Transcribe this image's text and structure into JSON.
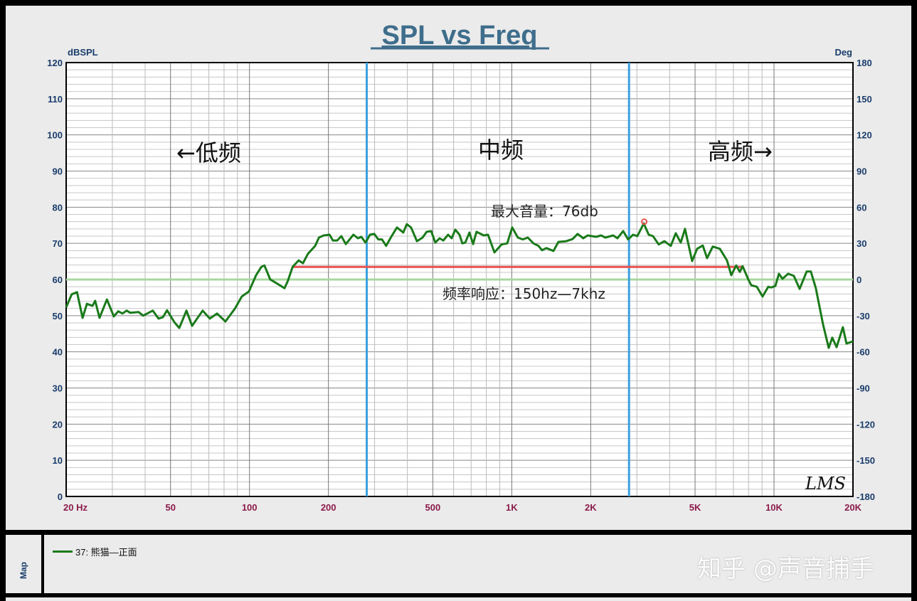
{
  "chart_data": {
    "type": "line",
    "title": "SPL vs Freq",
    "ylabel": "dBSPL",
    "ylabel_right": "Deg",
    "xscale": "log",
    "xlim": [
      20,
      20000
    ],
    "ylim": [
      0,
      120
    ],
    "ylim_right": [
      -180,
      180
    ],
    "yticks": [
      0,
      10,
      20,
      30,
      40,
      50,
      60,
      70,
      80,
      90,
      100,
      110,
      120
    ],
    "yticks_right": [
      -180,
      -150,
      -120,
      -90,
      -60,
      -30,
      0,
      30,
      60,
      90,
      120,
      150,
      180
    ],
    "xticks": [
      {
        "value": 20,
        "label": "20  Hz"
      },
      {
        "value": 50,
        "label": "50"
      },
      {
        "value": 100,
        "label": "100"
      },
      {
        "value": 200,
        "label": "200"
      },
      {
        "value": 500,
        "label": "500"
      },
      {
        "value": 1000,
        "label": "1K"
      },
      {
        "value": 2000,
        "label": "2K"
      },
      {
        "value": 5000,
        "label": "5K"
      },
      {
        "value": 10000,
        "label": "10K"
      },
      {
        "value": 20000,
        "label": "20K"
      }
    ],
    "grid": true,
    "series": [
      {
        "name": "37: 熊猫—正面",
        "color": "#1a7a1a",
        "x": [
          20,
          21,
          22,
          23.1,
          24,
          25.2,
          25.8,
          26.8,
          28.6,
          30.4,
          31.6,
          32.8,
          34,
          35.1,
          37.8,
          39.3,
          42.8,
          45,
          46.8,
          48.5,
          51.7,
          54,
          57.5,
          60.4,
          66.3,
          70.6,
          75.2,
          81,
          87.9,
          93.5,
          99.5,
          106,
          111,
          114,
          120,
          128,
          136,
          140,
          146,
          154,
          160,
          167,
          178,
          184,
          192,
          202,
          208,
          216,
          224,
          233,
          249,
          259,
          267,
          277,
          288,
          299,
          310,
          320,
          332,
          347,
          365,
          386,
          398,
          413,
          435,
          457,
          474,
          493,
          511,
          531,
          548,
          572,
          590,
          609,
          632,
          648,
          665,
          690,
          712,
          734,
          782,
          812,
          859,
          914,
          961,
          1004,
          1055,
          1102,
          1151,
          1210,
          1264,
          1304,
          1354,
          1442,
          1506,
          1614,
          1706,
          1783,
          1874,
          1946,
          2098,
          2190,
          2274,
          2436,
          2529,
          2660,
          2778,
          2902,
          3012,
          3186,
          3328,
          3456,
          3634,
          3820,
          4040,
          4220,
          4410,
          4576,
          4872,
          5090,
          5352,
          5556,
          5840,
          6218,
          6618,
          6870,
          7176,
          7404,
          7592,
          7980,
          8186,
          8602,
          9044,
          9506,
          9746,
          10120,
          10440,
          10772,
          11320,
          11900,
          12520,
          13320,
          13820,
          14440,
          15380,
          16160,
          16680,
          17320,
          18300,
          18900,
          20000
        ],
        "y": [
          52.3,
          55.9,
          56.5,
          49.4,
          53.3,
          52.7,
          54.1,
          49.4,
          54.5,
          49.8,
          51.2,
          50.6,
          51.4,
          50.8,
          51,
          50,
          51.4,
          49.2,
          49.6,
          51.5,
          48.2,
          46.6,
          51.4,
          47.2,
          51.4,
          49.2,
          50.6,
          48.4,
          51.9,
          55.3,
          56.7,
          61.2,
          63.5,
          63.9,
          60,
          58.8,
          57.6,
          59.6,
          63.5,
          65.3,
          64.5,
          67.1,
          69.3,
          71.6,
          72.2,
          72.4,
          70.8,
          70.8,
          72,
          69.8,
          72.4,
          71.4,
          71.8,
          70.2,
          72.4,
          72.6,
          71.1,
          71.1,
          69.3,
          71.8,
          74.4,
          73,
          75.3,
          74.4,
          70.6,
          71.6,
          73.2,
          73.4,
          70.2,
          71.4,
          70.8,
          72.4,
          71.4,
          73.8,
          72.4,
          70,
          70.2,
          73,
          69.8,
          73.2,
          72.2,
          72.4,
          67.5,
          69.7,
          70,
          74.4,
          71.6,
          71.1,
          71.6,
          70,
          69.3,
          68.1,
          68.7,
          67.9,
          70.4,
          70.6,
          71.2,
          72.6,
          71.4,
          72.2,
          71.8,
          72.2,
          71.6,
          72.2,
          71.4,
          73.4,
          71.1,
          72.4,
          72,
          75.5,
          72.4,
          72,
          69.7,
          70.6,
          69.3,
          72.8,
          70.2,
          74,
          65.1,
          68.5,
          69.4,
          65.9,
          69.1,
          68.5,
          65.3,
          61.2,
          63.9,
          62.1,
          63.7,
          60,
          58.4,
          58,
          55.3,
          58,
          57.8,
          58.2,
          61.6,
          60.2,
          61.6,
          61,
          57.4,
          62.2,
          62.2,
          57.6,
          47.6,
          41.1,
          43.9,
          41.3,
          46.8,
          42.3,
          42.9
        ]
      }
    ],
    "reference_line": {
      "y": 60,
      "color": "#a8d8a0"
    },
    "band_markers": [
      {
        "x": 280,
        "color": "#3aa0e0"
      },
      {
        "x": 2800,
        "color": "#3aa0e0"
      }
    ],
    "response_line": {
      "x_start": 146,
      "x_end": 7600,
      "y": 63.5,
      "color": "#e85050"
    },
    "max_point": {
      "x": 3200,
      "y": 76,
      "color": "#e85050"
    },
    "annotations": {
      "low": "←低频",
      "mid": "中频",
      "high": "高频→",
      "max_volume": "最大音量：76db",
      "freq_response": "频率响应：150hz—7khz"
    },
    "logo": "LMS",
    "legend_placement": "bottom-panel"
  },
  "legend": {
    "side_label": "Map",
    "entry": "37: 熊猫—正面"
  },
  "watermark": "知乎 @声音捕手",
  "colors": {
    "axis_text": "#1a3d6b",
    "x_tick_text": "#8b1a4a",
    "title": "#3f6e8c",
    "background": "#ebebeb"
  }
}
